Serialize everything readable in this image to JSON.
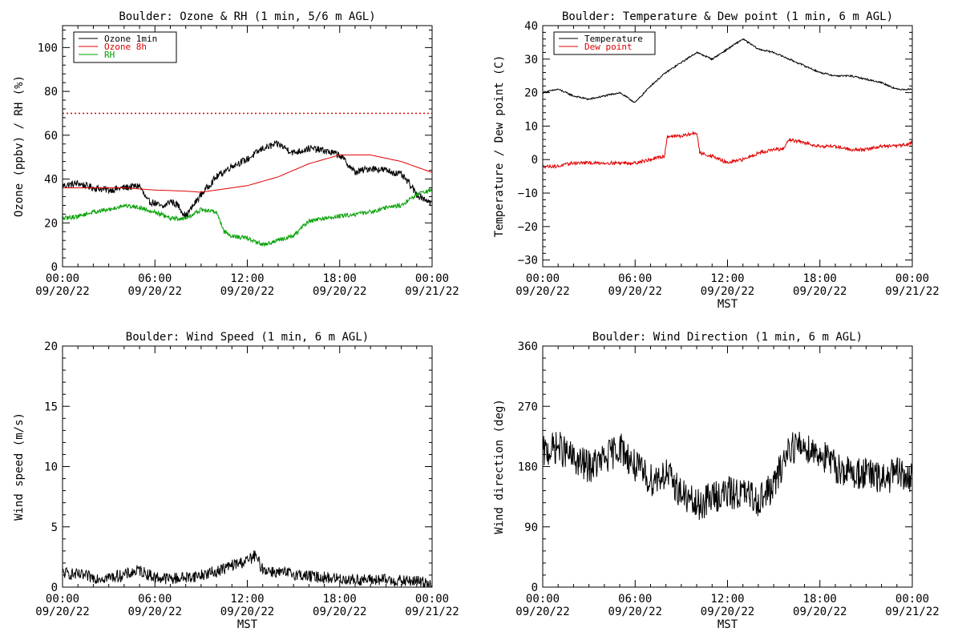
{
  "chart_data": [
    {
      "type": "line",
      "title": "Boulder: Ozone & RH (1 min, 5/6 m AGL)",
      "ylabel": "Ozone (ppbv) / RH (%)",
      "xlabel": "",
      "ylim": [
        0,
        110
      ],
      "yticks": [
        0,
        20,
        40,
        60,
        80,
        100
      ],
      "yticklabels": [
        "0",
        "20",
        "40",
        "60",
        "80",
        "100"
      ],
      "xticks_hours": [
        0,
        6,
        12,
        18,
        24
      ],
      "xtick_time": [
        "00:00",
        "06:00",
        "12:00",
        "18:00",
        "00:00"
      ],
      "xtick_date": [
        "09/20/22",
        "09/20/22",
        "09/20/22",
        "09/20/22",
        "09/21/22"
      ],
      "legend": "top-left",
      "reference_line": {
        "value": 70,
        "color": "#e00000",
        "style": "dotted"
      },
      "series": [
        {
          "name": "Ozone 1min",
          "color": "#000000",
          "noise": 1.6,
          "x": [
            0,
            1,
            2,
            3,
            4,
            5,
            5.5,
            6,
            6.5,
            7,
            7.5,
            8,
            8.5,
            9,
            10,
            11,
            12,
            13,
            14,
            15,
            16,
            17,
            18,
            19,
            20,
            21,
            22,
            22.5,
            23,
            23.5,
            24
          ],
          "y": [
            37,
            38,
            36,
            35,
            36,
            37,
            30,
            29,
            27,
            30,
            28,
            23,
            28,
            33,
            41,
            46,
            49,
            54,
            56,
            52,
            54,
            53,
            51,
            43,
            45,
            44,
            42,
            38,
            33,
            31,
            29
          ]
        },
        {
          "name": "Ozone 8h",
          "color": "#e00000",
          "noise": 0,
          "x": [
            0,
            2,
            4,
            6,
            8,
            9,
            10,
            12,
            14,
            16,
            18,
            20,
            22,
            24
          ],
          "y": [
            36,
            36,
            36,
            35,
            34.5,
            34,
            35,
            37,
            41,
            47,
            51,
            51,
            48,
            43
          ]
        },
        {
          "name": "RH",
          "color": "#00a000",
          "noise": 1.0,
          "x": [
            0,
            1,
            2,
            3,
            4,
            5,
            6,
            7,
            8,
            9,
            10,
            10.5,
            11,
            12,
            13,
            14,
            15,
            16,
            17,
            18,
            19,
            20,
            21,
            22,
            23,
            24
          ],
          "y": [
            22,
            23,
            25,
            26,
            28,
            27,
            25,
            22,
            22,
            26,
            25,
            16,
            14,
            13,
            10,
            12,
            14,
            21,
            22,
            23,
            24,
            25,
            27,
            28,
            33,
            35
          ]
        }
      ]
    },
    {
      "type": "line",
      "title": "Boulder: Temperature & Dew point (1 min, 6 m AGL)",
      "ylabel": "Temperature / Dew point (C)",
      "xlabel": "MST",
      "ylim": [
        -32,
        40
      ],
      "yticks": [
        -30,
        -20,
        -10,
        0,
        10,
        20,
        30,
        40
      ],
      "yticklabels": [
        "−30",
        "−20",
        "−10",
        "0",
        "10",
        "20",
        "30",
        "40"
      ],
      "xticks_hours": [
        0,
        6,
        12,
        18,
        24
      ],
      "xtick_time": [
        "00:00",
        "06:00",
        "12:00",
        "18:00",
        "00:00"
      ],
      "xtick_date": [
        "09/20/22",
        "09/20/22",
        "09/20/22",
        "09/20/22",
        "09/21/22"
      ],
      "legend": "top-left",
      "series": [
        {
          "name": "Temperature",
          "color": "#000000",
          "noise": 0.25,
          "x": [
            0,
            1,
            2,
            3,
            4,
            5,
            6,
            7,
            8,
            9,
            10,
            11,
            12,
            13,
            14,
            15,
            16,
            17,
            18,
            19,
            20,
            21,
            22,
            23,
            24
          ],
          "y": [
            20,
            21,
            19,
            18,
            19,
            20,
            17,
            22,
            26,
            29,
            32,
            30,
            33,
            36,
            33,
            32,
            30,
            28,
            26,
            25,
            25,
            24,
            23,
            21,
            21
          ]
        },
        {
          "name": "Dew point",
          "color": "#e00000",
          "noise": 0.5,
          "x": [
            0,
            1,
            2,
            3,
            4,
            5,
            6,
            7,
            7.9,
            8.1,
            9,
            10,
            10.2,
            11,
            12,
            13,
            14,
            15,
            15.6,
            16,
            17,
            18,
            19,
            20,
            21,
            22,
            23,
            24
          ],
          "y": [
            -2,
            -2,
            -1,
            -1,
            -1,
            -1,
            -1,
            0,
            1,
            7,
            7,
            8,
            2,
            1,
            -1,
            0,
            2,
            3,
            3,
            6,
            5,
            4,
            4,
            3,
            3,
            4,
            4,
            5
          ]
        }
      ]
    },
    {
      "type": "line",
      "title": "Boulder: Wind Speed (1 min, 6 m AGL)",
      "ylabel": "Wind speed (m/s)",
      "xlabel": "MST",
      "ylim": [
        0,
        20
      ],
      "yticks": [
        0,
        5,
        10,
        15,
        20
      ],
      "yticklabels": [
        "0",
        "5",
        "10",
        "15",
        "20"
      ],
      "xticks_hours": [
        0,
        6,
        12,
        18,
        24
      ],
      "xtick_time": [
        "00:00",
        "06:00",
        "12:00",
        "18:00",
        "00:00"
      ],
      "xtick_date": [
        "09/20/22",
        "09/20/22",
        "09/20/22",
        "09/20/22",
        "09/21/22"
      ],
      "legend": "none",
      "series": [
        {
          "name": "",
          "color": "#000000",
          "noise": 0.5,
          "x": [
            0,
            1,
            2,
            3,
            4,
            5,
            6,
            7,
            8,
            9,
            10,
            11,
            12,
            12.5,
            13,
            14,
            15,
            16,
            17,
            18,
            19,
            20,
            21,
            22,
            23,
            24
          ],
          "y": [
            1.2,
            1.0,
            0.8,
            0.8,
            1.0,
            1.4,
            0.8,
            0.7,
            0.8,
            1.0,
            1.3,
            1.8,
            2.2,
            2.6,
            1.5,
            1.2,
            1.1,
            0.9,
            0.8,
            0.7,
            0.6,
            0.6,
            0.6,
            0.5,
            0.5,
            0.3
          ]
        }
      ]
    },
    {
      "type": "line",
      "title": "Boulder: Wind Direction (1 min, 6 m AGL)",
      "ylabel": "Wind direction (deg)",
      "xlabel": "MST",
      "ylim": [
        0,
        360
      ],
      "yticks": [
        0,
        90,
        180,
        270,
        360
      ],
      "yticklabels": [
        "0",
        "90",
        "180",
        "270",
        "360"
      ],
      "xticks_hours": [
        0,
        6,
        12,
        18,
        24
      ],
      "xtick_time": [
        "00:00",
        "06:00",
        "12:00",
        "18:00",
        "00:00"
      ],
      "xtick_date": [
        "09/20/22",
        "09/20/22",
        "09/20/22",
        "09/20/22",
        "09/21/22"
      ],
      "legend": "none",
      "series": [
        {
          "name": "",
          "color": "#000000",
          "noise": 25,
          "x": [
            0,
            1,
            2,
            3,
            4,
            5,
            6,
            7,
            8,
            9,
            10,
            11,
            12,
            13,
            14,
            15,
            16,
            17,
            18,
            19,
            20,
            21,
            22,
            23,
            24
          ],
          "y": [
            200,
            210,
            190,
            180,
            190,
            210,
            180,
            160,
            170,
            140,
            120,
            135,
            140,
            140,
            130,
            150,
            210,
            210,
            200,
            180,
            170,
            170,
            160,
            170,
            160
          ]
        }
      ]
    }
  ]
}
